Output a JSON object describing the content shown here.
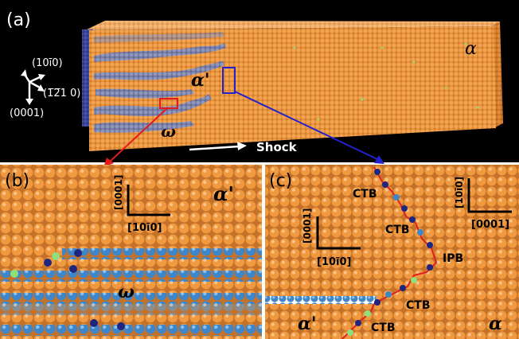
{
  "figure": {
    "panel_a": {
      "label": "(a)",
      "directions": {
        "d1": "(10ī0)",
        "d2": "(1̅2̅1 0)",
        "d3": "(0001)"
      },
      "phase_alpha": "α",
      "phase_alpha_prime": "α'",
      "phase_omega": "ω",
      "shock_label": "Shock"
    },
    "panel_b": {
      "label": "(b)",
      "axis_vertical": "[0001]",
      "axis_horizontal": "[10ī0]",
      "phase_alpha_prime": "α'",
      "phase_omega": "ω"
    },
    "panel_c": {
      "label": "(c)",
      "axis_left_vertical": "[0001]",
      "axis_left_horizontal": "[10ī0]",
      "axis_right_vertical": "[10ī0]",
      "axis_right_horizontal": "[0001]",
      "ctb": "CTB",
      "ipb": "IPB",
      "phase_alpha_prime": "α'",
      "phase_alpha": "α"
    },
    "colors": {
      "atom_orange": "#f09a3e",
      "atom_blue": "#3f86c9",
      "atom_navy": "#1f2680",
      "atom_green": "#8ee07a",
      "boundary_red": "#e02020",
      "zoom_red": "#e31b1b",
      "zoom_blue": "#2222cc"
    }
  }
}
